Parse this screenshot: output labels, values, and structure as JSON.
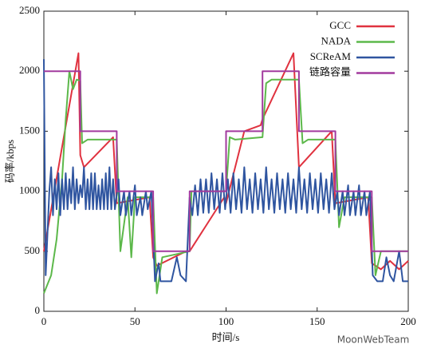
{
  "chart_data": {
    "type": "line",
    "xlabel": "时间/s",
    "ylabel": "码率/kbps",
    "xlim": [
      0,
      200
    ],
    "xticks": [
      0,
      50,
      100,
      150,
      200
    ],
    "ylim": [
      0,
      2500
    ],
    "yticks": [
      0,
      500,
      1000,
      1500,
      2000,
      2500
    ],
    "legend": "upper right",
    "watermark": "MoonWebTeam",
    "series": [
      {
        "name": "GCC",
        "color": "#e0323f",
        "x": [
          0,
          19,
          20,
          22,
          38,
          40,
          58,
          60,
          62,
          78,
          80,
          99,
          100,
          110,
          119,
          120,
          137,
          140,
          158,
          160,
          178,
          180,
          185,
          190,
          195,
          200
        ],
        "values": [
          500,
          2150,
          1300,
          1200,
          1450,
          900,
          950,
          450,
          380,
          500,
          500,
          950,
          900,
          1500,
          1550,
          1600,
          2150,
          1200,
          1500,
          900,
          950,
          400,
          350,
          420,
          350,
          420
        ]
      },
      {
        "name": "NADA",
        "color": "#5cb84a",
        "x": [
          0,
          4,
          7,
          10,
          12,
          14,
          16,
          18,
          20,
          21,
          24,
          40,
          42,
          46,
          48,
          50,
          60,
          62,
          65,
          80,
          81,
          84,
          100,
          102,
          105,
          120,
          122,
          125,
          140,
          142,
          145,
          160,
          162,
          165,
          180,
          182,
          185,
          200
        ],
        "values": [
          150,
          300,
          600,
          1100,
          1600,
          2000,
          1850,
          1930,
          1920,
          1400,
          1430,
          1430,
          500,
          950,
          450,
          950,
          950,
          150,
          450,
          500,
          1000,
          1000,
          1000,
          1450,
          1430,
          1450,
          1900,
          1930,
          1930,
          1400,
          1430,
          1430,
          700,
          950,
          950,
          300,
          500,
          500
        ]
      },
      {
        "name": "SCReAM",
        "color": "#2f55a0",
        "x": [
          0,
          1,
          3,
          4,
          5,
          6,
          7,
          8,
          9,
          10,
          11,
          12,
          13,
          14,
          15,
          16,
          17,
          18,
          19,
          20,
          21,
          22,
          23,
          24,
          25,
          26,
          27,
          28,
          29,
          30,
          31,
          32,
          33,
          34,
          35,
          36,
          37,
          38,
          39,
          41,
          42,
          44,
          45,
          47,
          48,
          50,
          51,
          53,
          54,
          56,
          57,
          59,
          61,
          63,
          64,
          70,
          73,
          75,
          78,
          80,
          81.5,
          83,
          84.5,
          86,
          87.5,
          89,
          90.5,
          92,
          93.5,
          95,
          96.5,
          98,
          99.5,
          101,
          102.5,
          104,
          105.5,
          107,
          108.5,
          110,
          111.5,
          113,
          114.5,
          116,
          117.5,
          119,
          120.5,
          122,
          123.5,
          125,
          126.5,
          128,
          129.5,
          131,
          132.5,
          134,
          135.5,
          137,
          138.5,
          140,
          141.5,
          143,
          144.5,
          146,
          147.5,
          149,
          150.5,
          152,
          153.5,
          155,
          156.5,
          158,
          159.5,
          161,
          162,
          164,
          165,
          167,
          168,
          170,
          171,
          173,
          174,
          176,
          177,
          179,
          180.5,
          183,
          186,
          188,
          190,
          192,
          195,
          197,
          200
        ],
        "values": [
          2100,
          300,
          1000,
          1200,
          800,
          1100,
          850,
          1150,
          800,
          1100,
          850,
          1150,
          850,
          1100,
          900,
          1200,
          850,
          1100,
          900,
          1050,
          950,
          1200,
          850,
          1100,
          850,
          1150,
          850,
          1150,
          850,
          1050,
          850,
          1100,
          850,
          1150,
          850,
          1200,
          850,
          1100,
          850,
          1100,
          800,
          1000,
          800,
          1000,
          800,
          1050,
          800,
          950,
          800,
          1000,
          850,
          1000,
          250,
          400,
          250,
          250,
          450,
          300,
          250,
          950,
          800,
          1050,
          800,
          1100,
          820,
          1100,
          820,
          1150,
          850,
          1100,
          820,
          1150,
          850,
          1100,
          820,
          1150,
          850,
          1100,
          820,
          1200,
          850,
          1100,
          820,
          1150,
          850,
          1100,
          820,
          1200,
          850,
          1100,
          820,
          1150,
          850,
          1100,
          820,
          1150,
          850,
          1100,
          820,
          1200,
          850,
          1100,
          820,
          1150,
          850,
          1100,
          820,
          1150,
          850,
          1100,
          820,
          1150,
          850,
          1000,
          800,
          1000,
          800,
          1050,
          800,
          1000,
          800,
          1050,
          800,
          1000,
          800,
          1000,
          300,
          250,
          250,
          450,
          300,
          250,
          500,
          250,
          250
        ]
      },
      {
        "name": "链路容量",
        "color": "#a23a9e",
        "x": [
          0,
          20,
          20,
          40,
          40,
          60,
          60,
          80,
          80,
          100,
          100,
          120,
          120,
          140,
          140,
          160,
          160,
          180,
          180,
          200
        ],
        "values": [
          2000,
          2000,
          1500,
          1500,
          1000,
          1000,
          500,
          500,
          1000,
          1000,
          1500,
          1500,
          2000,
          2000,
          1500,
          1500,
          1000,
          1000,
          500,
          500
        ]
      }
    ]
  }
}
